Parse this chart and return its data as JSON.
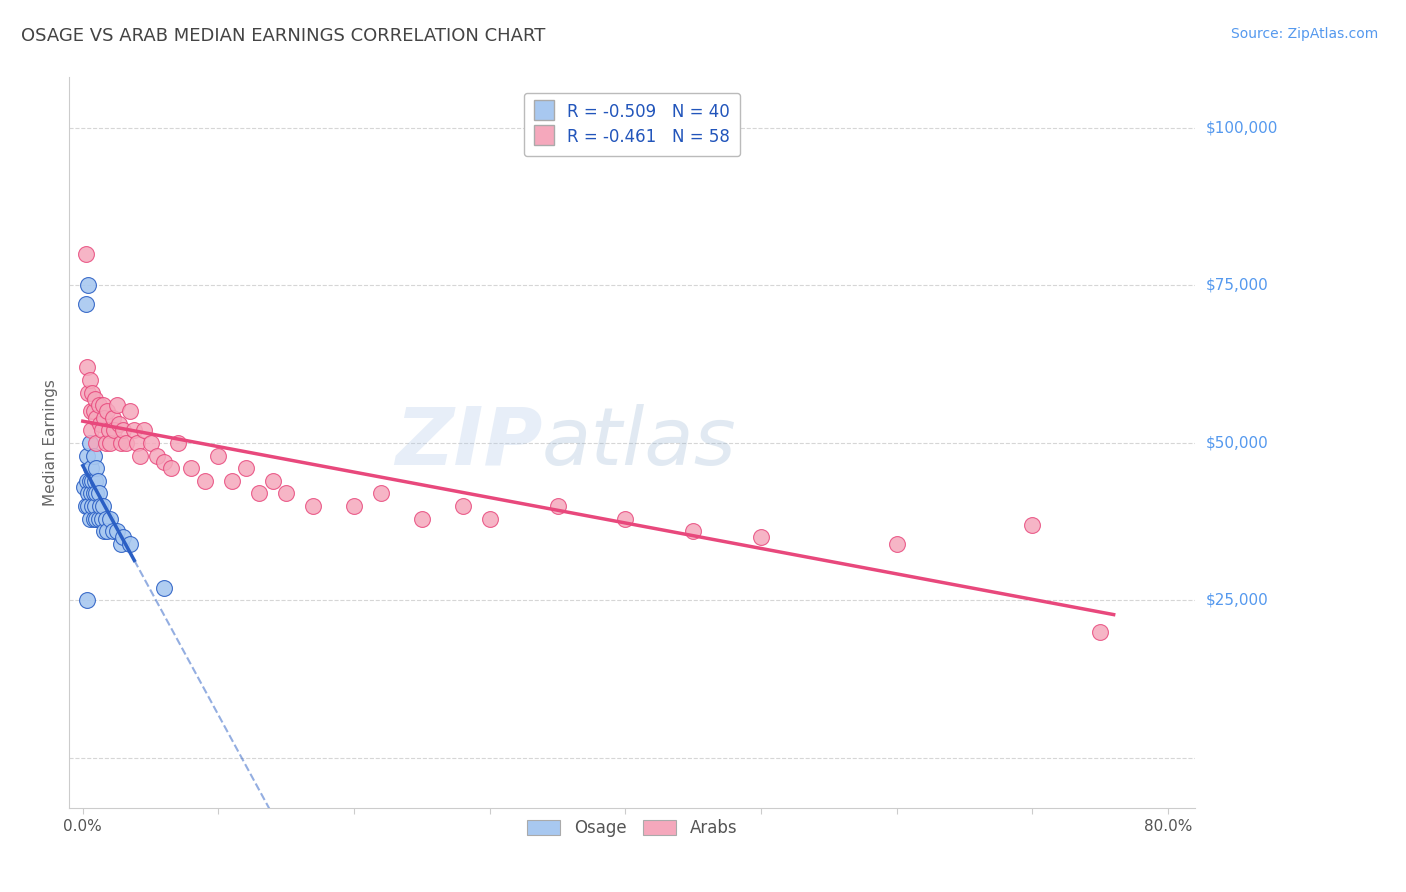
{
  "title": "OSAGE VS ARAB MEDIAN EARNINGS CORRELATION CHART",
  "source": "Source: ZipAtlas.com",
  "ylabel": "Median Earnings",
  "osage_color": "#A8C8F0",
  "arab_color": "#F5A8BC",
  "osage_line_color": "#2B5FC4",
  "arab_line_color": "#E8487C",
  "legend_r_osage": "R = -0.509",
  "legend_n_osage": "N = 40",
  "legend_r_arab": "R = -0.461",
  "legend_n_arab": "N = 58",
  "watermark_zip": "ZIP",
  "watermark_atlas": "atlas",
  "background_color": "#FFFFFF",
  "grid_color": "#CCCCCC",
  "title_color": "#444444",
  "axis_label_color": "#5599EE",
  "legend_text_color": "#2255BB",
  "osage_data": [
    [
      0.001,
      43000
    ],
    [
      0.002,
      40000
    ],
    [
      0.003,
      48000
    ],
    [
      0.003,
      44000
    ],
    [
      0.004,
      42000
    ],
    [
      0.004,
      40000
    ],
    [
      0.005,
      50000
    ],
    [
      0.005,
      44000
    ],
    [
      0.005,
      38000
    ],
    [
      0.006,
      46000
    ],
    [
      0.006,
      42000
    ],
    [
      0.007,
      44000
    ],
    [
      0.007,
      40000
    ],
    [
      0.008,
      48000
    ],
    [
      0.008,
      42000
    ],
    [
      0.008,
      38000
    ],
    [
      0.009,
      44000
    ],
    [
      0.009,
      40000
    ],
    [
      0.01,
      46000
    ],
    [
      0.01,
      42000
    ],
    [
      0.01,
      38000
    ],
    [
      0.011,
      44000
    ],
    [
      0.012,
      42000
    ],
    [
      0.012,
      38000
    ],
    [
      0.013,
      40000
    ],
    [
      0.014,
      38000
    ],
    [
      0.015,
      40000
    ],
    [
      0.016,
      36000
    ],
    [
      0.017,
      38000
    ],
    [
      0.018,
      36000
    ],
    [
      0.02,
      38000
    ],
    [
      0.022,
      36000
    ],
    [
      0.025,
      36000
    ],
    [
      0.028,
      34000
    ],
    [
      0.03,
      35000
    ],
    [
      0.035,
      34000
    ],
    [
      0.002,
      72000
    ],
    [
      0.004,
      75000
    ],
    [
      0.003,
      25000
    ],
    [
      0.06,
      27000
    ]
  ],
  "arab_data": [
    [
      0.002,
      80000
    ],
    [
      0.003,
      62000
    ],
    [
      0.004,
      58000
    ],
    [
      0.005,
      60000
    ],
    [
      0.006,
      55000
    ],
    [
      0.006,
      52000
    ],
    [
      0.007,
      58000
    ],
    [
      0.008,
      55000
    ],
    [
      0.009,
      57000
    ],
    [
      0.01,
      54000
    ],
    [
      0.01,
      50000
    ],
    [
      0.012,
      56000
    ],
    [
      0.013,
      53000
    ],
    [
      0.014,
      52000
    ],
    [
      0.015,
      56000
    ],
    [
      0.016,
      54000
    ],
    [
      0.017,
      50000
    ],
    [
      0.018,
      55000
    ],
    [
      0.019,
      52000
    ],
    [
      0.02,
      50000
    ],
    [
      0.022,
      54000
    ],
    [
      0.023,
      52000
    ],
    [
      0.025,
      56000
    ],
    [
      0.027,
      53000
    ],
    [
      0.028,
      50000
    ],
    [
      0.03,
      52000
    ],
    [
      0.032,
      50000
    ],
    [
      0.035,
      55000
    ],
    [
      0.038,
      52000
    ],
    [
      0.04,
      50000
    ],
    [
      0.042,
      48000
    ],
    [
      0.045,
      52000
    ],
    [
      0.05,
      50000
    ],
    [
      0.055,
      48000
    ],
    [
      0.06,
      47000
    ],
    [
      0.065,
      46000
    ],
    [
      0.07,
      50000
    ],
    [
      0.08,
      46000
    ],
    [
      0.09,
      44000
    ],
    [
      0.1,
      48000
    ],
    [
      0.11,
      44000
    ],
    [
      0.12,
      46000
    ],
    [
      0.13,
      42000
    ],
    [
      0.14,
      44000
    ],
    [
      0.15,
      42000
    ],
    [
      0.17,
      40000
    ],
    [
      0.2,
      40000
    ],
    [
      0.22,
      42000
    ],
    [
      0.25,
      38000
    ],
    [
      0.28,
      40000
    ],
    [
      0.3,
      38000
    ],
    [
      0.35,
      40000
    ],
    [
      0.4,
      38000
    ],
    [
      0.45,
      36000
    ],
    [
      0.5,
      35000
    ],
    [
      0.6,
      34000
    ],
    [
      0.7,
      37000
    ],
    [
      0.75,
      20000
    ]
  ]
}
